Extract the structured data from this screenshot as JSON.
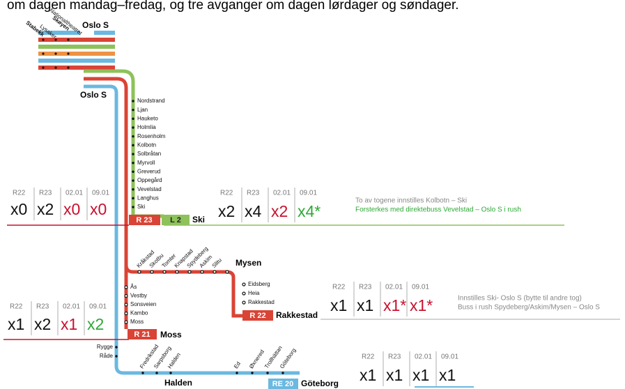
{
  "header_text": "om dagen mandag–fredag, og tre avganger om dagen lørdager og søndager.",
  "top": {
    "stations": [
      "Nationaltheatret",
      "Skøyen",
      "Lysaker",
      "Stabekk"
    ],
    "terminus": "Oslo S"
  },
  "oslo_s": "Oslo S",
  "ski_line": {
    "stations": [
      "Nordstrand",
      "Ljan",
      "Hauketo",
      "Holmlia",
      "Rosenholm",
      "Kolbotn",
      "Solbråtan",
      "Myrvoll",
      "Greverud",
      "Oppegård",
      "Vevelstad",
      "Langhus",
      "Ski"
    ],
    "badges": [
      "R 23",
      "L 2"
    ],
    "terminus": "Ski"
  },
  "mysen_line": {
    "stations": [
      "Kråkstad",
      "Skotbu",
      "Tomter",
      "Knapstad",
      "Spydeberg",
      "Askim",
      "Slitu"
    ],
    "terminus": "Mysen"
  },
  "rakkestad_line": {
    "stations": [
      "Eidsberg",
      "Heia",
      "Rakkestad"
    ],
    "badge": "R 22",
    "terminus": "Rakkestad"
  },
  "moss_line": {
    "stations": [
      "Ås",
      "Vestby",
      "Sonsveien",
      "Kambo",
      "Moss"
    ],
    "badge": "R 21",
    "terminus": "Moss"
  },
  "halden_line": {
    "stations_west": [
      "Rygge",
      "Råde"
    ],
    "stations_rotated": [
      "Fredrikstad",
      "Sarpsborg",
      "Halden"
    ],
    "halden": "Halden",
    "stations_east": [
      "Ed",
      "Øxnered",
      "Trollhättan",
      "Göteborg"
    ],
    "badge": "RE 20",
    "terminus": "Göteborg"
  },
  "tables": [
    {
      "headers": [
        "R22",
        "R23",
        "02.01",
        "09.01"
      ],
      "values": [
        "x0",
        "x2",
        "x0",
        "x0"
      ],
      "colors": [
        "#111",
        "#111",
        "#c8102e",
        "#c8102e"
      ]
    },
    {
      "headers": [
        "R22",
        "R23",
        "02.01",
        "09.01"
      ],
      "values": [
        "x2",
        "x4",
        "x2",
        "x4*"
      ],
      "colors": [
        "#111",
        "#111",
        "#c8102e",
        "#2ea836"
      ],
      "notes": [
        {
          "text": "To av togene innstilles Kolbotn – Ski",
          "color": "#888"
        },
        {
          "text": "Forsterkes med direktebuss Vevelstad – Oslo S i rush",
          "color": "#2ea836"
        }
      ]
    },
    {
      "headers": [
        "R22",
        "R23",
        "02.01",
        "09.01"
      ],
      "values": [
        "x1",
        "x1",
        "x1*",
        "x1*"
      ],
      "colors": [
        "#111",
        "#111",
        "#c8102e",
        "#c8102e"
      ],
      "notes": [
        {
          "text": "Innstilles Ski- Oslo S (bytte til andre tog)",
          "color": "#888"
        },
        {
          "text": "Buss i rush Spydeberg/Askim/Mysen – Oslo S",
          "color": "#888"
        }
      ]
    },
    {
      "headers": [
        "R22",
        "R23",
        "02.01",
        "09.01"
      ],
      "values": [
        "x1",
        "x2",
        "x1",
        "x2"
      ],
      "colors": [
        "#111",
        "#111",
        "#c8102e",
        "#2ea836"
      ]
    },
    {
      "headers": [
        "R22",
        "R23",
        "02.01",
        "09.01"
      ],
      "values": [
        "x1",
        "x1",
        "x1",
        "x1"
      ],
      "colors": [
        "#111",
        "#111",
        "#111",
        "#111"
      ]
    }
  ]
}
